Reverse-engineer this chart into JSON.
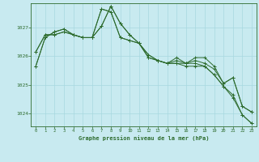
{
  "title": "Graphe pression niveau de la mer (hPa)",
  "bg_color": "#c8eaf0",
  "grid_color": "#a8d8e0",
  "line_color": "#2d6b2d",
  "marker_color": "#2d6b2d",
  "xlim": [
    -0.5,
    23.5
  ],
  "ylim": [
    1023.55,
    1027.85
  ],
  "yticks": [
    1024,
    1025,
    1026,
    1027
  ],
  "xticks": [
    0,
    1,
    2,
    3,
    4,
    5,
    6,
    7,
    8,
    9,
    10,
    11,
    12,
    13,
    14,
    15,
    16,
    17,
    18,
    19,
    20,
    21,
    22,
    23
  ],
  "series": [
    [
      1025.65,
      1026.65,
      1026.85,
      1026.95,
      1026.75,
      1026.65,
      1026.65,
      1027.65,
      1027.55,
      1026.65,
      1026.55,
      1026.45,
      1026.05,
      1025.85,
      1025.75,
      1025.75,
      1025.75,
      1025.75,
      1025.65,
      1025.35,
      1024.95,
      1024.65,
      1023.95,
      1023.65
    ],
    [
      1026.15,
      1026.75,
      1026.75,
      1026.85,
      1026.75,
      1026.65,
      1026.65,
      1027.05,
      1027.75,
      1027.15,
      1026.75,
      1026.45,
      1025.95,
      1025.85,
      1025.75,
      1025.75,
      1025.65,
      1025.65,
      1025.65,
      1025.35,
      1024.95,
      1024.55,
      1023.95,
      1023.65
    ],
    [
      1026.15,
      1026.75,
      1026.75,
      1026.85,
      1026.75,
      1026.65,
      1026.65,
      1027.05,
      1027.75,
      1027.15,
      1026.75,
      1026.45,
      1025.95,
      1025.85,
      1025.75,
      1025.95,
      1025.75,
      1025.85,
      1025.75,
      1025.55,
      1025.05,
      1025.25,
      1024.25,
      1024.05
    ],
    [
      1025.65,
      1026.65,
      1026.85,
      1026.95,
      1026.75,
      1026.65,
      1026.65,
      1027.65,
      1027.55,
      1026.65,
      1026.55,
      1026.45,
      1026.05,
      1025.85,
      1025.75,
      1025.85,
      1025.75,
      1025.95,
      1025.95,
      1025.65,
      1025.05,
      1025.25,
      1024.25,
      1024.05
    ]
  ]
}
